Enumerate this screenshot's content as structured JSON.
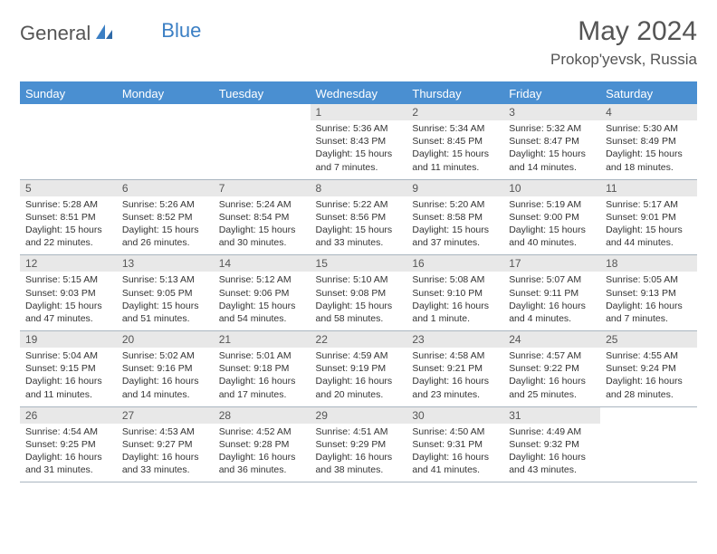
{
  "logo": {
    "text1": "General",
    "text2": "Blue",
    "icon_color": "#3b7fc4",
    "text1_color": "#555555",
    "text2_color": "#3b7fc4"
  },
  "title": {
    "month": "May 2024",
    "location": "Prokop'yevsk, Russia",
    "month_fontsize": 30,
    "location_fontsize": 17,
    "color": "#555555"
  },
  "colors": {
    "header_bg": "#4a8fd1",
    "header_text": "#ffffff",
    "daynum_bg": "#e8e8e8",
    "daynum_text": "#555555",
    "border": "#a9b5c0",
    "body_text": "#333333",
    "page_bg": "#ffffff"
  },
  "weekdays": [
    "Sunday",
    "Monday",
    "Tuesday",
    "Wednesday",
    "Thursday",
    "Friday",
    "Saturday"
  ],
  "weeks": [
    [
      {
        "n": "",
        "sr": "",
        "ss": "",
        "dl": ""
      },
      {
        "n": "",
        "sr": "",
        "ss": "",
        "dl": ""
      },
      {
        "n": "",
        "sr": "",
        "ss": "",
        "dl": ""
      },
      {
        "n": "1",
        "sr": "Sunrise: 5:36 AM",
        "ss": "Sunset: 8:43 PM",
        "dl": "Daylight: 15 hours and 7 minutes."
      },
      {
        "n": "2",
        "sr": "Sunrise: 5:34 AM",
        "ss": "Sunset: 8:45 PM",
        "dl": "Daylight: 15 hours and 11 minutes."
      },
      {
        "n": "3",
        "sr": "Sunrise: 5:32 AM",
        "ss": "Sunset: 8:47 PM",
        "dl": "Daylight: 15 hours and 14 minutes."
      },
      {
        "n": "4",
        "sr": "Sunrise: 5:30 AM",
        "ss": "Sunset: 8:49 PM",
        "dl": "Daylight: 15 hours and 18 minutes."
      }
    ],
    [
      {
        "n": "5",
        "sr": "Sunrise: 5:28 AM",
        "ss": "Sunset: 8:51 PM",
        "dl": "Daylight: 15 hours and 22 minutes."
      },
      {
        "n": "6",
        "sr": "Sunrise: 5:26 AM",
        "ss": "Sunset: 8:52 PM",
        "dl": "Daylight: 15 hours and 26 minutes."
      },
      {
        "n": "7",
        "sr": "Sunrise: 5:24 AM",
        "ss": "Sunset: 8:54 PM",
        "dl": "Daylight: 15 hours and 30 minutes."
      },
      {
        "n": "8",
        "sr": "Sunrise: 5:22 AM",
        "ss": "Sunset: 8:56 PM",
        "dl": "Daylight: 15 hours and 33 minutes."
      },
      {
        "n": "9",
        "sr": "Sunrise: 5:20 AM",
        "ss": "Sunset: 8:58 PM",
        "dl": "Daylight: 15 hours and 37 minutes."
      },
      {
        "n": "10",
        "sr": "Sunrise: 5:19 AM",
        "ss": "Sunset: 9:00 PM",
        "dl": "Daylight: 15 hours and 40 minutes."
      },
      {
        "n": "11",
        "sr": "Sunrise: 5:17 AM",
        "ss": "Sunset: 9:01 PM",
        "dl": "Daylight: 15 hours and 44 minutes."
      }
    ],
    [
      {
        "n": "12",
        "sr": "Sunrise: 5:15 AM",
        "ss": "Sunset: 9:03 PM",
        "dl": "Daylight: 15 hours and 47 minutes."
      },
      {
        "n": "13",
        "sr": "Sunrise: 5:13 AM",
        "ss": "Sunset: 9:05 PM",
        "dl": "Daylight: 15 hours and 51 minutes."
      },
      {
        "n": "14",
        "sr": "Sunrise: 5:12 AM",
        "ss": "Sunset: 9:06 PM",
        "dl": "Daylight: 15 hours and 54 minutes."
      },
      {
        "n": "15",
        "sr": "Sunrise: 5:10 AM",
        "ss": "Sunset: 9:08 PM",
        "dl": "Daylight: 15 hours and 58 minutes."
      },
      {
        "n": "16",
        "sr": "Sunrise: 5:08 AM",
        "ss": "Sunset: 9:10 PM",
        "dl": "Daylight: 16 hours and 1 minute."
      },
      {
        "n": "17",
        "sr": "Sunrise: 5:07 AM",
        "ss": "Sunset: 9:11 PM",
        "dl": "Daylight: 16 hours and 4 minutes."
      },
      {
        "n": "18",
        "sr": "Sunrise: 5:05 AM",
        "ss": "Sunset: 9:13 PM",
        "dl": "Daylight: 16 hours and 7 minutes."
      }
    ],
    [
      {
        "n": "19",
        "sr": "Sunrise: 5:04 AM",
        "ss": "Sunset: 9:15 PM",
        "dl": "Daylight: 16 hours and 11 minutes."
      },
      {
        "n": "20",
        "sr": "Sunrise: 5:02 AM",
        "ss": "Sunset: 9:16 PM",
        "dl": "Daylight: 16 hours and 14 minutes."
      },
      {
        "n": "21",
        "sr": "Sunrise: 5:01 AM",
        "ss": "Sunset: 9:18 PM",
        "dl": "Daylight: 16 hours and 17 minutes."
      },
      {
        "n": "22",
        "sr": "Sunrise: 4:59 AM",
        "ss": "Sunset: 9:19 PM",
        "dl": "Daylight: 16 hours and 20 minutes."
      },
      {
        "n": "23",
        "sr": "Sunrise: 4:58 AM",
        "ss": "Sunset: 9:21 PM",
        "dl": "Daylight: 16 hours and 23 minutes."
      },
      {
        "n": "24",
        "sr": "Sunrise: 4:57 AM",
        "ss": "Sunset: 9:22 PM",
        "dl": "Daylight: 16 hours and 25 minutes."
      },
      {
        "n": "25",
        "sr": "Sunrise: 4:55 AM",
        "ss": "Sunset: 9:24 PM",
        "dl": "Daylight: 16 hours and 28 minutes."
      }
    ],
    [
      {
        "n": "26",
        "sr": "Sunrise: 4:54 AM",
        "ss": "Sunset: 9:25 PM",
        "dl": "Daylight: 16 hours and 31 minutes."
      },
      {
        "n": "27",
        "sr": "Sunrise: 4:53 AM",
        "ss": "Sunset: 9:27 PM",
        "dl": "Daylight: 16 hours and 33 minutes."
      },
      {
        "n": "28",
        "sr": "Sunrise: 4:52 AM",
        "ss": "Sunset: 9:28 PM",
        "dl": "Daylight: 16 hours and 36 minutes."
      },
      {
        "n": "29",
        "sr": "Sunrise: 4:51 AM",
        "ss": "Sunset: 9:29 PM",
        "dl": "Daylight: 16 hours and 38 minutes."
      },
      {
        "n": "30",
        "sr": "Sunrise: 4:50 AM",
        "ss": "Sunset: 9:31 PM",
        "dl": "Daylight: 16 hours and 41 minutes."
      },
      {
        "n": "31",
        "sr": "Sunrise: 4:49 AM",
        "ss": "Sunset: 9:32 PM",
        "dl": "Daylight: 16 hours and 43 minutes."
      },
      {
        "n": "",
        "sr": "",
        "ss": "",
        "dl": ""
      }
    ]
  ]
}
